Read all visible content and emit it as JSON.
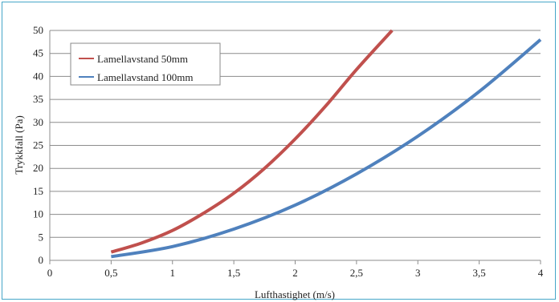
{
  "chart_data": {
    "type": "line",
    "title": "",
    "xlabel": "Lufthastighet (m/s)",
    "ylabel": "Trykkfall (Pa)",
    "xlim": [
      0,
      4
    ],
    "ylim": [
      0,
      50
    ],
    "x_ticks": [
      "0",
      "0,5",
      "1",
      "1,5",
      "2",
      "2,5",
      "3",
      "3,5",
      "4"
    ],
    "y_ticks": [
      "0",
      "5",
      "10",
      "15",
      "20",
      "25",
      "30",
      "35",
      "40",
      "45",
      "50"
    ],
    "grid": "horizontal",
    "legend_position": "top-left",
    "series": [
      {
        "name": "Lamellavstand  50mm",
        "color": "#c0504d",
        "x": [
          0.5,
          0.75,
          1.0,
          1.25,
          1.5,
          1.75,
          2.0,
          2.25,
          2.5,
          2.79
        ],
        "y": [
          1.8,
          3.8,
          6.5,
          10.2,
          14.6,
          20.0,
          26.4,
          33.6,
          41.5,
          50.0
        ]
      },
      {
        "name": "Lamellavstand 100mm",
        "color": "#4f81bd",
        "x": [
          0.5,
          1.0,
          1.5,
          2.0,
          2.5,
          3.0,
          3.5,
          4.0
        ],
        "y": [
          0.8,
          3.0,
          6.8,
          12.0,
          18.8,
          27.0,
          36.7,
          48.0
        ]
      }
    ]
  }
}
